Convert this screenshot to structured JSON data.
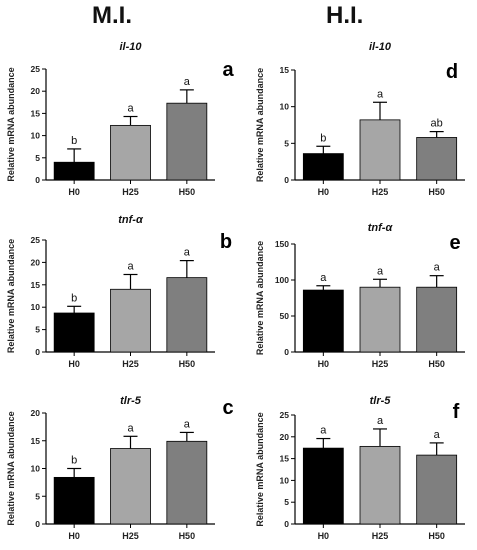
{
  "figure": {
    "column_titles": [
      "M.I.",
      "H.I."
    ]
  },
  "colors": {
    "H0": "#000000",
    "H25": "#a6a6a6",
    "H50": "#7f7f7f"
  },
  "chart_data": [
    {
      "panel": "a",
      "column": "M.I.",
      "type": "bar",
      "title": "il-10",
      "ylabel": "Relative mRNA abundance",
      "categories": [
        "H0",
        "H25",
        "H50"
      ],
      "values": [
        4.0,
        12.3,
        17.3
      ],
      "errors": [
        3.0,
        2.0,
        3.0
      ],
      "letters": [
        "b",
        "a",
        "a"
      ],
      "ylim": [
        0,
        25
      ],
      "yticks": [
        0,
        5,
        10,
        15,
        20,
        25
      ]
    },
    {
      "panel": "b",
      "column": "M.I.",
      "type": "bar",
      "title": "tnf-α",
      "ylabel": "Relative mRNA abundance",
      "categories": [
        "H0",
        "H25",
        "H50"
      ],
      "values": [
        8.7,
        14.0,
        16.6
      ],
      "errors": [
        1.5,
        3.3,
        3.8
      ],
      "letters": [
        "b",
        "a",
        "a"
      ],
      "ylim": [
        0,
        25
      ],
      "yticks": [
        0,
        5,
        10,
        15,
        20,
        25
      ]
    },
    {
      "panel": "c",
      "column": "M.I.",
      "type": "bar",
      "title": "tlr-5",
      "ylabel": "Relative mRNA abundance",
      "categories": [
        "H0",
        "H25",
        "H50"
      ],
      "values": [
        8.4,
        13.6,
        14.9
      ],
      "errors": [
        1.6,
        2.2,
        1.6
      ],
      "letters": [
        "b",
        "a",
        "a"
      ],
      "ylim": [
        0,
        20
      ],
      "yticks": [
        0,
        5,
        10,
        15,
        20
      ]
    },
    {
      "panel": "d",
      "column": "H.I.",
      "type": "bar",
      "title": "il-10",
      "ylabel": "Relative mRNA abundance",
      "categories": [
        "H0",
        "H25",
        "H50"
      ],
      "values": [
        3.6,
        8.2,
        5.8
      ],
      "errors": [
        1.0,
        2.4,
        0.8
      ],
      "letters": [
        "b",
        "a",
        "ab"
      ],
      "ylim": [
        0,
        15
      ],
      "yticks": [
        0,
        5,
        10,
        15
      ]
    },
    {
      "panel": "e",
      "column": "H.I.",
      "type": "bar",
      "title": "tnf-α",
      "ylabel": "Relative mRNA abundance",
      "categories": [
        "H0",
        "H25",
        "H50"
      ],
      "values": [
        86,
        90,
        90
      ],
      "errors": [
        6,
        11,
        16
      ],
      "letters": [
        "a",
        "a",
        "a"
      ],
      "ylim": [
        0,
        150
      ],
      "yticks": [
        0,
        50,
        100,
        150
      ]
    },
    {
      "panel": "f",
      "column": "H.I.",
      "type": "bar",
      "title": "tlr-5",
      "ylabel": "Relative mRNA abundance",
      "categories": [
        "H0",
        "H25",
        "H50"
      ],
      "values": [
        17.4,
        17.8,
        15.8
      ],
      "errors": [
        2.2,
        4.0,
        2.8
      ],
      "letters": [
        "a",
        "a",
        "a"
      ],
      "ylim": [
        0,
        25
      ],
      "yticks": [
        0,
        5,
        10,
        15,
        20,
        25
      ]
    }
  ]
}
